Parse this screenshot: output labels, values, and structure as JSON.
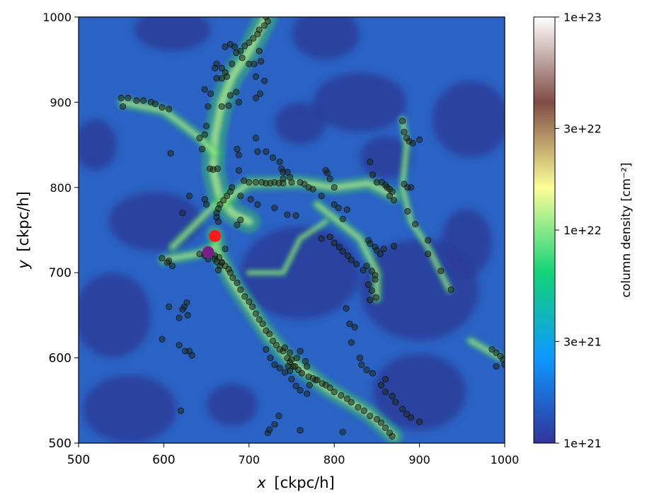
{
  "chart_data": {
    "type": "heatmap",
    "xlabel_var": "x",
    "xlabel_unit": "[ckpc/h]",
    "ylabel_var": "y",
    "ylabel_unit": "[ckpc/h]",
    "xlim": [
      500,
      1000
    ],
    "ylim": [
      500,
      1000
    ],
    "x_ticks": [
      "500",
      "600",
      "700",
      "800",
      "900",
      "1000"
    ],
    "y_ticks": [
      "500",
      "600",
      "700",
      "800",
      "900",
      "1000"
    ],
    "colorbar": {
      "label": "column density [cm⁻²]",
      "scale": "log",
      "range": [
        1e+21,
        1e+23
      ],
      "ticks": [
        "1e+21",
        "3e+21",
        "1e+22",
        "3e+22",
        "1e+23"
      ],
      "tick_values": [
        1e+21,
        3e+21,
        1e+22,
        3e+22,
        1e+23
      ],
      "colormap": "terrain",
      "colors": [
        "#333399",
        "#0d98ff",
        "#13d378",
        "#fdfe98",
        "#804c44",
        "#ffffff"
      ]
    },
    "highlighted_points": [
      {
        "x": 660,
        "y": 743,
        "color": "#ff1a1a"
      },
      {
        "x": 652,
        "y": 724,
        "color": "#7a1f8a"
      }
    ],
    "halo_points": [
      [
        720,
        1000
      ],
      [
        722,
        995
      ],
      [
        718,
        990
      ],
      [
        712,
        985
      ],
      [
        710,
        980
      ],
      [
        705,
        975
      ],
      [
        700,
        970
      ],
      [
        695,
        966
      ],
      [
        690,
        960
      ],
      [
        685,
        958
      ],
      [
        678,
        968
      ],
      [
        672,
        965
      ],
      [
        662,
        945
      ],
      [
        660,
        940
      ],
      [
        668,
        940
      ],
      [
        672,
        935
      ],
      [
        674,
        930
      ],
      [
        668,
        928
      ],
      [
        662,
        928
      ],
      [
        692,
        952
      ],
      [
        680,
        945
      ],
      [
        683,
        965
      ],
      [
        700,
        945
      ],
      [
        706,
        945
      ],
      [
        712,
        960
      ],
      [
        714,
        948
      ],
      [
        708,
        930
      ],
      [
        718,
        925
      ],
      [
        713,
        910
      ],
      [
        708,
        905
      ],
      [
        685,
        912
      ],
      [
        678,
        908
      ],
      [
        688,
        900
      ],
      [
        676,
        896
      ],
      [
        668,
        895
      ],
      [
        648,
        915
      ],
      [
        655,
        910
      ],
      [
        652,
        895
      ],
      [
        650,
        872
      ],
      [
        648,
        862
      ],
      [
        642,
        858
      ],
      [
        645,
        845
      ],
      [
        654,
        822
      ],
      [
        658,
        821
      ],
      [
        663,
        822
      ],
      [
        608,
        840
      ],
      [
        552,
        895
      ],
      [
        550,
        905
      ],
      [
        558,
        905
      ],
      [
        568,
        902
      ],
      [
        576,
        902
      ],
      [
        585,
        900
      ],
      [
        590,
        898
      ],
      [
        598,
        894
      ],
      [
        606,
        892
      ],
      [
        686,
        845
      ],
      [
        688,
        838
      ],
      [
        688,
        820
      ],
      [
        708,
        858
      ],
      [
        710,
        842
      ],
      [
        720,
        842
      ],
      [
        728,
        835
      ],
      [
        736,
        830
      ],
      [
        738,
        822
      ],
      [
        740,
        818
      ],
      [
        745,
        818
      ],
      [
        748,
        812
      ],
      [
        740,
        810
      ],
      [
        694,
        808
      ],
      [
        700,
        806
      ],
      [
        708,
        806
      ],
      [
        715,
        806
      ],
      [
        720,
        805
      ],
      [
        725,
        805
      ],
      [
        730,
        806
      ],
      [
        735,
        805
      ],
      [
        740,
        805
      ],
      [
        750,
        806
      ],
      [
        760,
        806
      ],
      [
        765,
        804
      ],
      [
        770,
        800
      ],
      [
        775,
        798
      ],
      [
        680,
        800
      ],
      [
        678,
        795
      ],
      [
        674,
        790
      ],
      [
        670,
        785
      ],
      [
        666,
        780
      ],
      [
        664,
        775
      ],
      [
        662,
        770
      ],
      [
        662,
        765
      ],
      [
        664,
        760
      ],
      [
        690,
        790
      ],
      [
        702,
        786
      ],
      [
        710,
        780
      ],
      [
        730,
        776
      ],
      [
        745,
        768
      ],
      [
        755,
        767
      ],
      [
        790,
        820
      ],
      [
        792,
        817
      ],
      [
        795,
        810
      ],
      [
        800,
        800
      ],
      [
        785,
        790
      ],
      [
        800,
        780
      ],
      [
        805,
        776
      ],
      [
        815,
        774
      ],
      [
        810,
        763
      ],
      [
        842,
        830
      ],
      [
        845,
        815
      ],
      [
        850,
        806
      ],
      [
        856,
        806
      ],
      [
        860,
        803
      ],
      [
        862,
        800
      ],
      [
        865,
        798
      ],
      [
        868,
        795
      ],
      [
        865,
        790
      ],
      [
        870,
        785
      ],
      [
        880,
        878
      ],
      [
        882,
        865
      ],
      [
        885,
        858
      ],
      [
        888,
        854
      ],
      [
        892,
        852
      ],
      [
        900,
        856
      ],
      [
        882,
        804
      ],
      [
        886,
        800
      ],
      [
        890,
        800
      ],
      [
        886,
        772
      ],
      [
        895,
        757
      ],
      [
        910,
        738
      ],
      [
        910,
        722
      ],
      [
        925,
        702
      ],
      [
        937,
        680
      ],
      [
        840,
        738
      ],
      [
        842,
        734
      ],
      [
        848,
        730
      ],
      [
        850,
        726
      ],
      [
        854,
        722
      ],
      [
        858,
        728
      ],
      [
        838,
        708
      ],
      [
        844,
        702
      ],
      [
        848,
        697
      ],
      [
        848,
        692
      ],
      [
        840,
        686
      ],
      [
        844,
        679
      ],
      [
        849,
        671
      ],
      [
        842,
        668
      ],
      [
        870,
        731
      ],
      [
        814,
        658
      ],
      [
        818,
        640
      ],
      [
        824,
        636
      ],
      [
        820,
        618
      ],
      [
        830,
        600
      ],
      [
        832,
        592
      ],
      [
        838,
        586
      ],
      [
        845,
        582
      ],
      [
        860,
        575
      ],
      [
        855,
        568
      ],
      [
        860,
        560
      ],
      [
        868,
        555
      ],
      [
        872,
        548
      ],
      [
        880,
        540
      ],
      [
        885,
        534
      ],
      [
        890,
        530
      ],
      [
        900,
        525
      ],
      [
        985,
        610
      ],
      [
        990,
        606
      ],
      [
        995,
        602
      ],
      [
        998,
        598
      ],
      [
        1000,
        592
      ],
      [
        990,
        590
      ],
      [
        642,
        722
      ],
      [
        648,
        722
      ],
      [
        655,
        722
      ],
      [
        660,
        720
      ],
      [
        665,
        718
      ],
      [
        668,
        712
      ],
      [
        672,
        708
      ],
      [
        676,
        704
      ],
      [
        678,
        700
      ],
      [
        681,
        694
      ],
      [
        686,
        688
      ],
      [
        690,
        680
      ],
      [
        695,
        672
      ],
      [
        700,
        666
      ],
      [
        704,
        660
      ],
      [
        708,
        652
      ],
      [
        712,
        645
      ],
      [
        716,
        640
      ],
      [
        720,
        632
      ],
      [
        724,
        628
      ],
      [
        728,
        620
      ],
      [
        732,
        615
      ],
      [
        736,
        610
      ],
      [
        740,
        608
      ],
      [
        745,
        600
      ],
      [
        748,
        595
      ],
      [
        752,
        590
      ],
      [
        758,
        586
      ],
      [
        762,
        582
      ],
      [
        770,
        578
      ],
      [
        778,
        574
      ],
      [
        786,
        570
      ],
      [
        795,
        565
      ],
      [
        800,
        560
      ],
      [
        808,
        556
      ],
      [
        815,
        552
      ],
      [
        820,
        548
      ],
      [
        828,
        542
      ],
      [
        835,
        538
      ],
      [
        842,
        532
      ],
      [
        850,
        528
      ],
      [
        855,
        524
      ],
      [
        860,
        518
      ],
      [
        865,
        512
      ],
      [
        868,
        508
      ],
      [
        742,
        612
      ],
      [
        748,
        606
      ],
      [
        746,
        590
      ],
      [
        748,
        585
      ],
      [
        754,
        590
      ],
      [
        750,
        598
      ],
      [
        756,
        600
      ],
      [
        760,
        608
      ],
      [
        766,
        596
      ],
      [
        768,
        590
      ],
      [
        720,
        610
      ],
      [
        725,
        600
      ],
      [
        730,
        592
      ],
      [
        736,
        588
      ],
      [
        742,
        583
      ],
      [
        750,
        575
      ],
      [
        755,
        567
      ],
      [
        760,
        562
      ],
      [
        768,
        558
      ],
      [
        771,
        568
      ],
      [
        775,
        576
      ],
      [
        780,
        574
      ],
      [
        790,
        568
      ],
      [
        722,
        512
      ],
      [
        724,
        516
      ],
      [
        730,
        522
      ],
      [
        735,
        532
      ],
      [
        810,
        513
      ],
      [
        760,
        515
      ],
      [
        630,
        608
      ],
      [
        633,
        603
      ],
      [
        618,
        647
      ],
      [
        624,
        660
      ],
      [
        628,
        650
      ],
      [
        622,
        657
      ],
      [
        627,
        665
      ],
      [
        618,
        615
      ],
      [
        625,
        608
      ],
      [
        598,
        622
      ],
      [
        620,
        538
      ],
      [
        606,
        660
      ],
      [
        598,
        717
      ],
      [
        606,
        714
      ],
      [
        610,
        708
      ],
      [
        604,
        712
      ],
      [
        648,
        720
      ],
      [
        652,
        716
      ],
      [
        660,
        716
      ],
      [
        662,
        713
      ],
      [
        666,
        708
      ],
      [
        664,
        703
      ],
      [
        668,
        712
      ],
      [
        672,
        728
      ],
      [
        686,
        756
      ],
      [
        690,
        762
      ],
      [
        650,
        780
      ],
      [
        648,
        786
      ],
      [
        630,
        790
      ],
      [
        622,
        770
      ],
      [
        785,
        740
      ],
      [
        795,
        742
      ],
      [
        800,
        735
      ],
      [
        806,
        730
      ],
      [
        810,
        725
      ],
      [
        816,
        720
      ],
      [
        820,
        715
      ],
      [
        826,
        710
      ],
      [
        834,
        703
      ]
    ]
  }
}
